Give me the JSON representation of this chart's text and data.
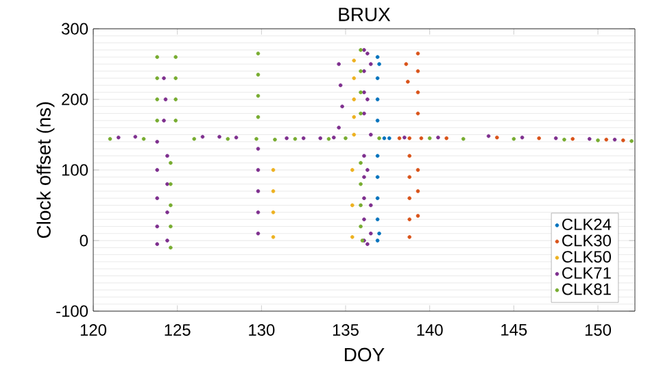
{
  "chart_data": {
    "type": "scatter",
    "title": "BRUX",
    "xlabel": "DOY",
    "ylabel": "Clock offset (ns)",
    "xlim": [
      120,
      152.2
    ],
    "ylim": [
      -100,
      300
    ],
    "xticks": [
      120,
      125,
      130,
      135,
      140,
      145,
      150
    ],
    "yticks": [
      -100,
      0,
      100,
      200,
      300
    ],
    "grid": "y",
    "legend": "bottom right",
    "marker": "circle",
    "series": [
      {
        "name": "CLK24",
        "color": "#0072bd",
        "x": [
          136.9,
          136.9,
          136.9,
          136.9,
          136.9,
          136.9,
          136.9,
          136.9,
          136.9,
          137.0,
          137.0,
          137.3,
          137.6
        ],
        "values": [
          260,
          230,
          200,
          170,
          120,
          90,
          60,
          30,
          0,
          250,
          10,
          145,
          145
        ]
      },
      {
        "name": "CLK30",
        "color": "#d95319",
        "x": [
          138.2,
          138.8,
          138.8,
          138.8,
          138.8,
          138.8,
          138.8,
          138.6,
          138.7,
          139.3,
          139.3,
          139.3,
          139.3,
          139.3,
          139.3,
          139.3,
          139.5,
          141,
          144,
          146.5,
          148.5,
          150.5,
          151.5
        ],
        "values": [
          145,
          145,
          120,
          90,
          60,
          30,
          5,
          250,
          225,
          265,
          240,
          210,
          180,
          100,
          70,
          35,
          145,
          145,
          146,
          145,
          144,
          143,
          142
        ]
      },
      {
        "name": "CLK50",
        "color": "#edb120",
        "x": [
          135.5,
          135.5,
          135.5,
          135.5,
          135.5,
          135.4,
          135.4,
          135.4,
          130.7,
          130.7,
          130.7,
          130.7
        ],
        "values": [
          255,
          230,
          200,
          175,
          150,
          100,
          50,
          5,
          100,
          70,
          40,
          5
        ]
      },
      {
        "name": "CLK71",
        "color": "#7e2f8e",
        "x": [
          121.5,
          122.5,
          126.5,
          127.5,
          128.5,
          131.5,
          132.5,
          133.5,
          134.3,
          138.5,
          140.5,
          143.5,
          145.5,
          147.5,
          149.5,
          151,
          123.8,
          123.8,
          123.8,
          123.8,
          123.8,
          124.2,
          124.3,
          124.2,
          124.4,
          124.4,
          124.4,
          124.4,
          129.8,
          129.8,
          129.8,
          129.8,
          129.8,
          134.6,
          134.7,
          134.8,
          134.6,
          136.1,
          136.1,
          136.1,
          136.1,
          136.1,
          136.1,
          136.1,
          136.1,
          136.1,
          136.3,
          136.3,
          136.3,
          136.3,
          136.5,
          136.5,
          136.5,
          136.5
        ],
        "values": [
          146,
          147,
          147,
          147,
          146,
          145,
          145,
          145,
          146,
          146,
          146,
          148,
          146,
          145,
          144,
          143,
          140,
          100,
          60,
          20,
          -5,
          230,
          200,
          170,
          120,
          80,
          40,
          0,
          130,
          100,
          70,
          40,
          10,
          250,
          220,
          190,
          160,
          270,
          240,
          210,
          180,
          120,
          90,
          60,
          30,
          0,
          265,
          200,
          100,
          -5,
          250,
          150,
          50,
          10
        ]
      },
      {
        "name": "CLK81",
        "color": "#77ac30",
        "x": [
          121,
          123,
          126,
          128,
          129.7,
          130.8,
          132,
          134,
          135,
          137,
          140,
          142,
          145,
          148,
          150,
          152,
          123.8,
          123.8,
          123.8,
          123.8,
          124.6,
          124.6,
          124.6,
          124.6,
          124.6,
          124.9,
          124.9,
          124.9,
          124.9,
          129.8,
          129.8,
          129.8,
          129.8,
          135.9,
          135.9,
          135.9,
          135.9,
          135.9,
          135.9,
          135.9,
          135.9,
          136.0
        ],
        "values": [
          144,
          144,
          144,
          144,
          144,
          143,
          144,
          144,
          145,
          145,
          145,
          144,
          144,
          143,
          142,
          141,
          260,
          230,
          200,
          170,
          -10,
          20,
          50,
          80,
          110,
          260,
          230,
          200,
          170,
          265,
          235,
          205,
          175,
          270,
          240,
          210,
          180,
          110,
          80,
          50,
          20,
          0
        ]
      }
    ]
  }
}
